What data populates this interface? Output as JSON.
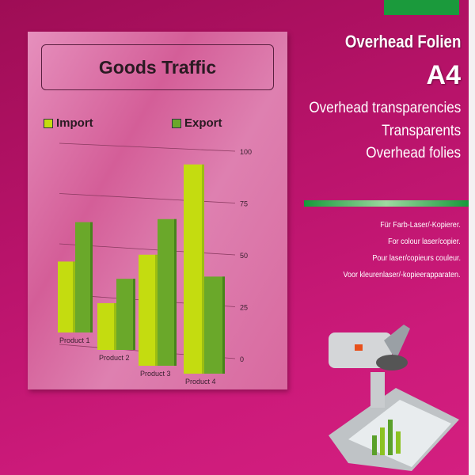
{
  "package": {
    "title": "Overhead Folien",
    "size": "A4",
    "subtitles": [
      "Overhead transparencies",
      "Transparents",
      "Overhead folies"
    ],
    "descriptions": [
      "Für Farb-Laser/-Kopierer.",
      "For colour laser/copier.",
      "Pour laser/copieurs couleur.",
      "Voor kleurenlaser/-kopieerapparaten."
    ],
    "colors": {
      "background": "#b8136a",
      "accent_green": "#1b9a3c",
      "card": "#d8699f"
    }
  },
  "chart_data": {
    "type": "bar",
    "title": "Goods Traffic",
    "categories": [
      "Product 1",
      "Product 2",
      "Product 3",
      "Product 4"
    ],
    "series": [
      {
        "name": "Import",
        "values": [
          36,
          23,
          53,
          97
        ],
        "color": "#c4dc10"
      },
      {
        "name": "Export",
        "values": [
          56,
          35,
          70,
          45
        ],
        "color": "#6aa82a"
      }
    ],
    "ylim": [
      0,
      100
    ],
    "yticks": [
      "0",
      "25",
      "50",
      "75",
      "100"
    ],
    "legend": "top",
    "grid": true
  }
}
